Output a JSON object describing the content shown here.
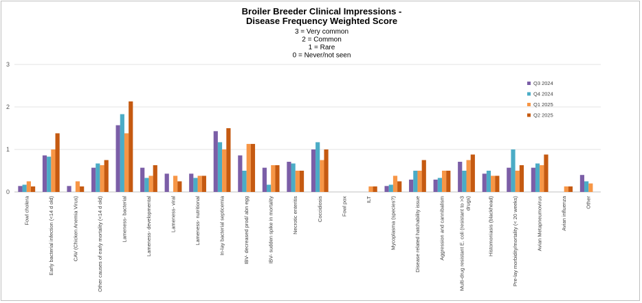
{
  "chart_data": {
    "type": "bar",
    "title": [
      "Broiler Breeder Clinical Impressions -",
      "Disease Frequency Weighted Score"
    ],
    "subtitle": [
      "3 = Very common",
      "2 = Common",
      "1 = Rare",
      "0 = Never/not seen"
    ],
    "xlabel": "",
    "ylabel": "",
    "ylim": [
      0,
      3
    ],
    "yticks": [
      "0",
      "1",
      "2",
      "3"
    ],
    "grid": true,
    "legend_position": "right",
    "categories": [
      "Fowl cholera",
      "Early bacterial infection (<14 d old)",
      "CAV (Chicken Anemia Virus)",
      "Other causes of early mortality (<14 d old)",
      "Lameness- bacterial",
      "Lameness- developmental",
      "Lameness- viral",
      "Lameness- nutritional",
      "In-lay bacterial septicemia",
      "IBV- decreased prod/ abn egg",
      "IBV- sudden spike in mortality",
      "Necrotic enteritis",
      "Coccidiosis",
      "Fowl pox",
      "ILT",
      "Mycoplasma (species?)",
      "Disease related hatchability issue",
      "Aggression and cannibalism",
      "Multi-drug resistant E. coli (resistant to >3 drugs)",
      "Histomoniasis (blackhead)",
      "Pre-lay morbidity/mortality (< 20 weeks)",
      "Avian Metapneumovirus",
      "Avian influenza",
      "Other"
    ],
    "series": [
      {
        "name": "Q3 2024",
        "color": "#7B5EA7",
        "values": [
          0.14,
          0.86,
          0.14,
          0.57,
          1.57,
          0.57,
          0.43,
          0.43,
          1.43,
          0.86,
          0.57,
          0.71,
          1.0,
          0,
          0,
          0.14,
          0.29,
          0.29,
          0.71,
          0.43,
          0.57,
          0.57,
          0,
          0.4
        ]
      },
      {
        "name": "Q4 2024",
        "color": "#4BACC6",
        "values": [
          0.17,
          0.83,
          0,
          0.67,
          1.83,
          0.33,
          0,
          0.33,
          1.17,
          0.5,
          0.17,
          0.67,
          1.17,
          0,
          0,
          0.17,
          0.5,
          0.33,
          0.5,
          0.5,
          1.0,
          0.67,
          0,
          0.25
        ]
      },
      {
        "name": "Q1 2025",
        "color": "#F79646",
        "values": [
          0.25,
          1.0,
          0.25,
          0.63,
          1.38,
          0.38,
          0.38,
          0.38,
          1.0,
          1.13,
          0.63,
          0.5,
          0.75,
          0,
          0.13,
          0.38,
          0.5,
          0.5,
          0.75,
          0.38,
          0.5,
          0.63,
          0.13,
          0.2
        ]
      },
      {
        "name": "Q2 2025",
        "color": "#C55A11",
        "values": [
          0.13,
          1.38,
          0.13,
          0.75,
          2.13,
          0.63,
          0.25,
          0.38,
          1.5,
          1.13,
          0.63,
          0.5,
          1.0,
          0,
          0.13,
          0.25,
          0.75,
          0.5,
          0.88,
          0.38,
          0.63,
          0.88,
          0.13,
          0
        ]
      }
    ]
  }
}
